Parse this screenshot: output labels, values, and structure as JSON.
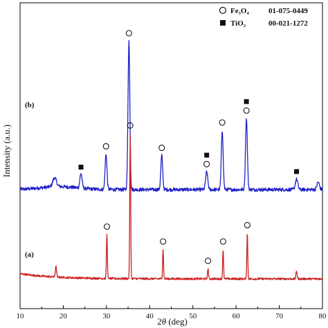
{
  "chart_data": {
    "type": "line",
    "xlabel_prefix": "2",
    "xlabel_symbol": "θ",
    "xlabel_suffix": " (deg)",
    "ylabel": "Intensity (a.u.)",
    "xlim": [
      10,
      80
    ],
    "x_ticks": [
      "10",
      "20",
      "30",
      "40",
      "50",
      "60",
      "70",
      "80"
    ],
    "grid": false,
    "legend_position": "top-right",
    "legend": [
      {
        "marker": "circle",
        "name": "Fe₃O₄",
        "code": "01-075-0449"
      },
      {
        "marker": "square",
        "name": "TiO₂",
        "code": "00-021-1272"
      }
    ],
    "series": [
      {
        "label": "(b)",
        "color": "#1f1fc8",
        "baseline": 0.8,
        "peaks": [
          {
            "x": 18.0,
            "height": 0.06,
            "width": 0.6,
            "markers": []
          },
          {
            "x": 24.1,
            "height": 0.1,
            "width": 0.35,
            "markers": [
              "square"
            ]
          },
          {
            "x": 29.9,
            "height": 0.24,
            "width": 0.3,
            "markers": [
              "circle"
            ]
          },
          {
            "x": 35.2,
            "height": 1.0,
            "width": 0.3,
            "markers": [
              "circle"
            ]
          },
          {
            "x": 42.8,
            "height": 0.23,
            "width": 0.3,
            "markers": [
              "circle"
            ]
          },
          {
            "x": 53.2,
            "height": 0.12,
            "width": 0.35,
            "markers": [
              "circle",
              "square"
            ]
          },
          {
            "x": 56.8,
            "height": 0.4,
            "width": 0.3,
            "markers": [
              "circle"
            ]
          },
          {
            "x": 62.4,
            "height": 0.48,
            "width": 0.3,
            "markers": [
              "circle",
              "square"
            ]
          },
          {
            "x": 74.0,
            "height": 0.07,
            "width": 0.4,
            "markers": [
              "square"
            ]
          },
          {
            "x": 79.0,
            "height": 0.05,
            "width": 0.4,
            "markers": []
          }
        ]
      },
      {
        "label": "(a)",
        "color": "#cc1f1f",
        "baseline": 0.2,
        "peaks": [
          {
            "x": 18.3,
            "height": 0.07,
            "width": 0.2,
            "markers": []
          },
          {
            "x": 30.1,
            "height": 0.3,
            "width": 0.15,
            "markers": [
              "circle"
            ]
          },
          {
            "x": 35.5,
            "height": 0.98,
            "width": 0.15,
            "markers": [
              "circle"
            ]
          },
          {
            "x": 43.1,
            "height": 0.2,
            "width": 0.15,
            "markers": [
              "circle"
            ]
          },
          {
            "x": 53.5,
            "height": 0.07,
            "width": 0.15,
            "markers": [
              "circle"
            ]
          },
          {
            "x": 57.0,
            "height": 0.2,
            "width": 0.15,
            "markers": [
              "circle"
            ]
          },
          {
            "x": 62.6,
            "height": 0.31,
            "width": 0.15,
            "markers": [
              "circle"
            ]
          },
          {
            "x": 74.0,
            "height": 0.05,
            "width": 0.2,
            "markers": []
          }
        ]
      }
    ]
  }
}
